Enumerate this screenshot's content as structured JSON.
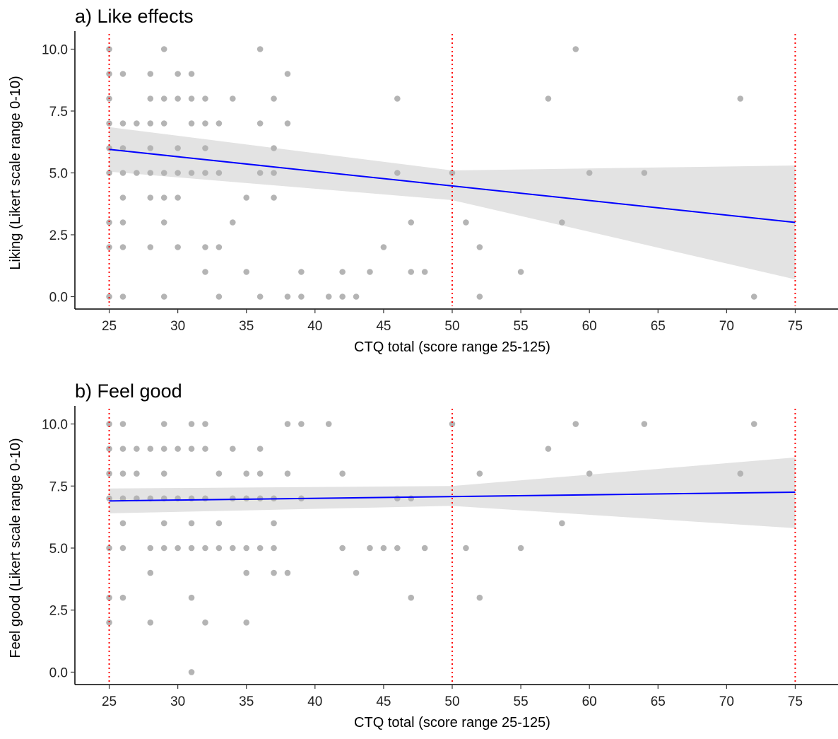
{
  "chart_data": [
    {
      "type": "scatter",
      "title": "a) Like effects",
      "xlabel": "CTQ total (score range 25-125)",
      "ylabel": "Liking (Likert scale range 0-10)",
      "xlim": [
        22.5,
        77.5
      ],
      "ylim": [
        -0.5,
        10.5
      ],
      "x_ticks": [
        25,
        30,
        35,
        40,
        45,
        50,
        55,
        60,
        65,
        70,
        75
      ],
      "y_ticks": [
        0,
        2.5,
        5,
        7.5,
        10
      ],
      "x_tick_labels": [
        "25",
        "30",
        "35",
        "40",
        "45",
        "50",
        "55",
        "60",
        "65",
        "70",
        "75"
      ],
      "y_tick_labels": [
        "0.0",
        "2.5",
        "5.0",
        "7.5",
        "10.0"
      ],
      "grid": false,
      "reference_lines_x": [
        25,
        50,
        75
      ],
      "colors": {
        "points": "#b4b4b4",
        "fit_line": "#0000ff",
        "ci_band": "#e3e3e3",
        "ref_lines": "#ff0000"
      },
      "points": [
        [
          25,
          10
        ],
        [
          25,
          9
        ],
        [
          25,
          8
        ],
        [
          25,
          7
        ],
        [
          25,
          6
        ],
        [
          25,
          5
        ],
        [
          25,
          3
        ],
        [
          25,
          2
        ],
        [
          25,
          0
        ],
        [
          26,
          9
        ],
        [
          26,
          7
        ],
        [
          26,
          6
        ],
        [
          26,
          5
        ],
        [
          26,
          4
        ],
        [
          26,
          3
        ],
        [
          26,
          2
        ],
        [
          26,
          0
        ],
        [
          27,
          7
        ],
        [
          27,
          5
        ],
        [
          28,
          9
        ],
        [
          28,
          8
        ],
        [
          28,
          7
        ],
        [
          28,
          6
        ],
        [
          28,
          5
        ],
        [
          28,
          4
        ],
        [
          28,
          2
        ],
        [
          29,
          10
        ],
        [
          29,
          8
        ],
        [
          29,
          7
        ],
        [
          29,
          5
        ],
        [
          29,
          4
        ],
        [
          29,
          3
        ],
        [
          29,
          0
        ],
        [
          30,
          9
        ],
        [
          30,
          8
        ],
        [
          30,
          6
        ],
        [
          30,
          5
        ],
        [
          30,
          4
        ],
        [
          30,
          2
        ],
        [
          31,
          9
        ],
        [
          31,
          8
        ],
        [
          31,
          7
        ],
        [
          31,
          5
        ],
        [
          32,
          8
        ],
        [
          32,
          7
        ],
        [
          32,
          6
        ],
        [
          32,
          5
        ],
        [
          32,
          2
        ],
        [
          32,
          1
        ],
        [
          33,
          7
        ],
        [
          33,
          5
        ],
        [
          33,
          2
        ],
        [
          33,
          0
        ],
        [
          34,
          8
        ],
        [
          34,
          3
        ],
        [
          35,
          4
        ],
        [
          35,
          1
        ],
        [
          36,
          10
        ],
        [
          36,
          7
        ],
        [
          36,
          5
        ],
        [
          36,
          0
        ],
        [
          37,
          8
        ],
        [
          37,
          6
        ],
        [
          37,
          5
        ],
        [
          37,
          4
        ],
        [
          38,
          9
        ],
        [
          38,
          7
        ],
        [
          38,
          0
        ],
        [
          39,
          1
        ],
        [
          39,
          0
        ],
        [
          41,
          0
        ],
        [
          42,
          1
        ],
        [
          42,
          0
        ],
        [
          43,
          0
        ],
        [
          44,
          1
        ],
        [
          45,
          2
        ],
        [
          46,
          8
        ],
        [
          46,
          5
        ],
        [
          47,
          3
        ],
        [
          47,
          1
        ],
        [
          48,
          1
        ],
        [
          50,
          5
        ],
        [
          51,
          3
        ],
        [
          52,
          2
        ],
        [
          52,
          0
        ],
        [
          55,
          1
        ],
        [
          57,
          8
        ],
        [
          58,
          3
        ],
        [
          59,
          10
        ],
        [
          60,
          5
        ],
        [
          64,
          5
        ],
        [
          71,
          8
        ],
        [
          72,
          0
        ]
      ],
      "fit": {
        "x": [
          25,
          75
        ],
        "y": [
          5.95,
          3.0
        ]
      },
      "ci": {
        "x": [
          25,
          50,
          75
        ],
        "lower": [
          5.05,
          3.9,
          0.7
        ],
        "upper": [
          6.85,
          5.1,
          5.3
        ]
      }
    },
    {
      "type": "scatter",
      "title": "b) Feel good",
      "xlabel": "CTQ total (score range 25-125)",
      "ylabel": "Feel good (Likert scale range 0-10)",
      "xlim": [
        22.5,
        77.5
      ],
      "ylim": [
        -0.5,
        10.5
      ],
      "x_ticks": [
        25,
        30,
        35,
        40,
        45,
        50,
        55,
        60,
        65,
        70,
        75
      ],
      "y_ticks": [
        0,
        2.5,
        5,
        7.5,
        10
      ],
      "x_tick_labels": [
        "25",
        "30",
        "35",
        "40",
        "45",
        "50",
        "55",
        "60",
        "65",
        "70",
        "75"
      ],
      "y_tick_labels": [
        "0.0",
        "2.5",
        "5.0",
        "7.5",
        "10.0"
      ],
      "grid": false,
      "reference_lines_x": [
        25,
        50,
        75
      ],
      "colors": {
        "points": "#b4b4b4",
        "fit_line": "#0000ff",
        "ci_band": "#e3e3e3",
        "ref_lines": "#ff0000"
      },
      "points": [
        [
          25,
          10
        ],
        [
          25,
          9
        ],
        [
          25,
          8
        ],
        [
          25,
          7
        ],
        [
          25,
          5
        ],
        [
          25,
          3
        ],
        [
          25,
          2
        ],
        [
          26,
          10
        ],
        [
          26,
          9
        ],
        [
          26,
          8
        ],
        [
          26,
          7
        ],
        [
          26,
          6
        ],
        [
          26,
          5
        ],
        [
          26,
          3
        ],
        [
          27,
          9
        ],
        [
          27,
          8
        ],
        [
          27,
          7
        ],
        [
          28,
          9
        ],
        [
          28,
          7
        ],
        [
          28,
          5
        ],
        [
          28,
          4
        ],
        [
          28,
          2
        ],
        [
          29,
          10
        ],
        [
          29,
          9
        ],
        [
          29,
          8
        ],
        [
          29,
          7
        ],
        [
          29,
          6
        ],
        [
          29,
          5
        ],
        [
          30,
          9
        ],
        [
          30,
          7
        ],
        [
          30,
          5
        ],
        [
          31,
          10
        ],
        [
          31,
          9
        ],
        [
          31,
          7
        ],
        [
          31,
          6
        ],
        [
          31,
          5
        ],
        [
          31,
          3
        ],
        [
          31,
          0
        ],
        [
          32,
          10
        ],
        [
          32,
          9
        ],
        [
          32,
          7
        ],
        [
          32,
          5
        ],
        [
          32,
          2
        ],
        [
          33,
          8
        ],
        [
          33,
          6
        ],
        [
          33,
          5
        ],
        [
          34,
          9
        ],
        [
          34,
          7
        ],
        [
          34,
          5
        ],
        [
          35,
          8
        ],
        [
          35,
          7
        ],
        [
          35,
          5
        ],
        [
          35,
          4
        ],
        [
          35,
          2
        ],
        [
          36,
          9
        ],
        [
          36,
          8
        ],
        [
          36,
          7
        ],
        [
          36,
          5
        ],
        [
          37,
          7
        ],
        [
          37,
          6
        ],
        [
          37,
          5
        ],
        [
          37,
          4
        ],
        [
          38,
          10
        ],
        [
          38,
          8
        ],
        [
          38,
          4
        ],
        [
          39,
          10
        ],
        [
          39,
          7
        ],
        [
          41,
          10
        ],
        [
          42,
          8
        ],
        [
          42,
          5
        ],
        [
          43,
          4
        ],
        [
          44,
          5
        ],
        [
          45,
          5
        ],
        [
          46,
          7
        ],
        [
          46,
          5
        ],
        [
          47,
          7
        ],
        [
          47,
          3
        ],
        [
          48,
          5
        ],
        [
          50,
          10
        ],
        [
          51,
          5
        ],
        [
          52,
          8
        ],
        [
          52,
          3
        ],
        [
          55,
          5
        ],
        [
          57,
          9
        ],
        [
          58,
          6
        ],
        [
          59,
          10
        ],
        [
          60,
          8
        ],
        [
          64,
          10
        ],
        [
          71,
          8
        ],
        [
          72,
          10
        ]
      ],
      "fit": {
        "x": [
          25,
          75
        ],
        "y": [
          6.9,
          7.25
        ]
      },
      "ci": {
        "x": [
          25,
          50,
          75
        ],
        "lower": [
          6.4,
          6.7,
          5.8
        ],
        "upper": [
          7.4,
          7.5,
          8.65
        ]
      }
    }
  ]
}
